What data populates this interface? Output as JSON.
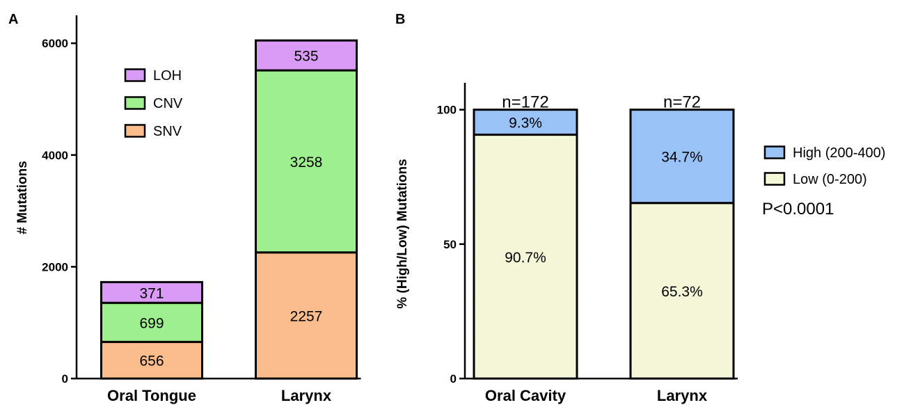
{
  "panel_a_letter": "A",
  "panel_b_letter": "B",
  "pvalue_text": "P<0.0001",
  "chart_data": [
    {
      "type": "bar",
      "stacked": true,
      "panel": "A",
      "categories": [
        "Oral Tongue",
        "Larynx"
      ],
      "series": [
        {
          "name": "SNV",
          "values": [
            656,
            2257
          ],
          "labels": [
            "656",
            "2257"
          ],
          "color": "#fbbd8c"
        },
        {
          "name": "CNV",
          "values": [
            699,
            3258
          ],
          "labels": [
            "699",
            "3258"
          ],
          "color": "#9ef08f"
        },
        {
          "name": "LOH",
          "values": [
            371,
            535
          ],
          "labels": [
            "371",
            "535"
          ],
          "color": "#d99bf5"
        }
      ],
      "legend_order": [
        "LOH",
        "CNV",
        "SNV"
      ],
      "ylabel": "# Mutations",
      "xlabel": "",
      "ylim": [
        0,
        6500
      ],
      "yticks": [
        0,
        2000,
        4000,
        6000
      ],
      "ytick_labels": [
        "0",
        "2000",
        "4000",
        "6000"
      ],
      "grid": false,
      "legend_position": "top-left inside"
    },
    {
      "type": "bar",
      "stacked": true,
      "panel": "B",
      "categories": [
        "Oral Cavity",
        "Larynx"
      ],
      "annotations": [
        "n=172",
        "n=72"
      ],
      "series": [
        {
          "name": "Low (0-200)",
          "values": [
            90.7,
            65.3
          ],
          "labels": [
            "90.7%",
            "65.3%"
          ],
          "color": "#f7fadc"
        },
        {
          "name": "High (200-400)",
          "values": [
            9.3,
            34.7
          ],
          "labels": [
            "9.3%",
            "34.7%"
          ],
          "color": "#99c2f7"
        }
      ],
      "legend_order": [
        "High (200-400)",
        "Low (0-200)"
      ],
      "ylabel": "% (High/Low) Mutations",
      "xlabel": "",
      "ylim": [
        0,
        110
      ],
      "yticks": [
        0,
        50,
        100
      ],
      "ytick_labels": [
        "0",
        "50",
        "100"
      ],
      "grid": false,
      "legend_position": "right"
    }
  ]
}
